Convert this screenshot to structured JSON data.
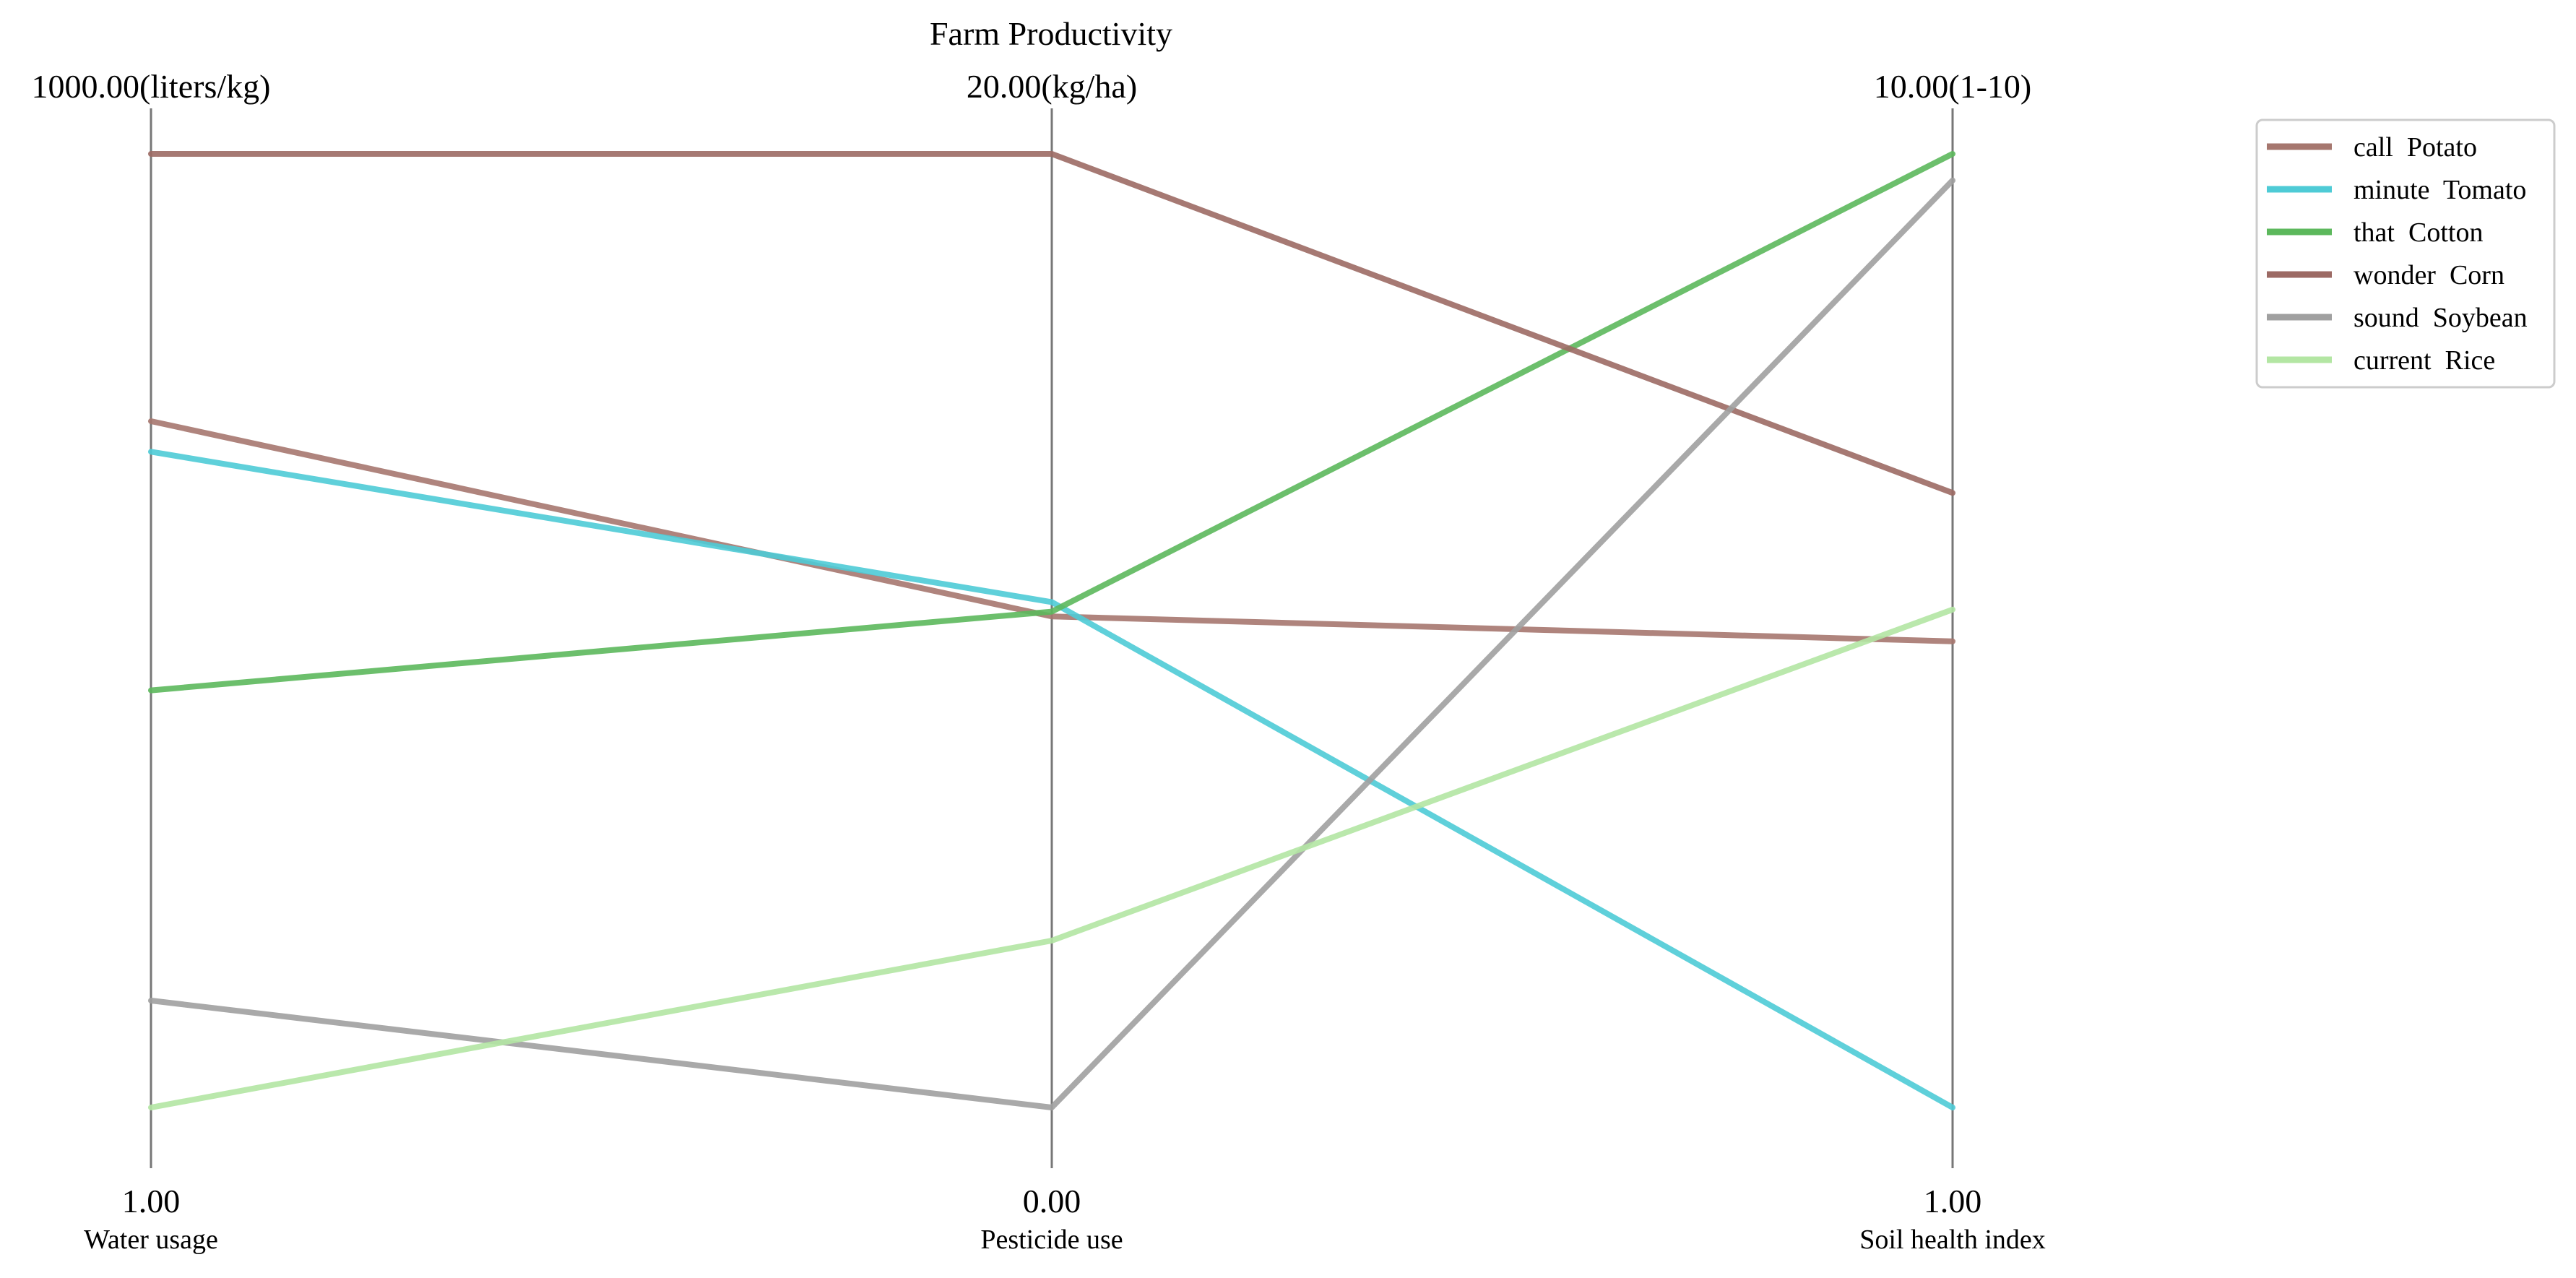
{
  "chart_data": {
    "type": "parallel_coordinates",
    "title": "Farm Productivity",
    "axes": [
      {
        "name": "Water usage",
        "unit": "(liters/kg)",
        "min": 1.0,
        "max": 1000.0,
        "min_label": "1.00",
        "max_label": "1000.00(liters/kg)"
      },
      {
        "name": "Pesticide use",
        "unit": "(kg/ha)",
        "min": 0.0,
        "max": 20.0,
        "min_label": "0.00",
        "max_label": "20.00(kg/ha)"
      },
      {
        "name": "Soil health index",
        "unit": "(1-10)",
        "min": 1.0,
        "max": 10.0,
        "min_label": "1.00",
        "max_label": "10.00(1-10)"
      }
    ],
    "series": [
      {
        "name": "call  Potato",
        "color": "#a6776f",
        "values": [
          720,
          10.3,
          5.4
        ]
      },
      {
        "name": "minute  Tomato",
        "color": "#4ecbd6",
        "values": [
          688,
          10.6,
          1.0
        ]
      },
      {
        "name": "that  Cotton",
        "color": "#5cb85c",
        "values": [
          438,
          10.4,
          10.0
        ]
      },
      {
        "name": "wonder  Corn",
        "color": "#9c6a64",
        "values": [
          1000,
          20.0,
          6.8
        ]
      },
      {
        "name": "sound  Soybean",
        "color": "#a0a0a0",
        "values": [
          113,
          0.0,
          9.75
        ]
      },
      {
        "name": "current  Rice",
        "color": "#b3e6a3",
        "values": [
          1,
          3.5,
          5.7
        ]
      }
    ],
    "legend_position": "top-right",
    "grid": false
  }
}
